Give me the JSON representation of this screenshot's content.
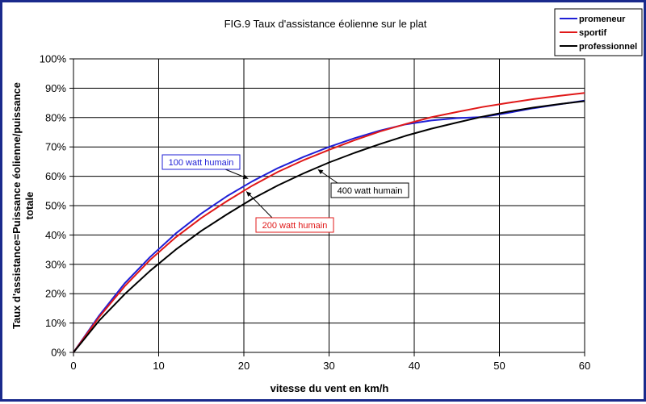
{
  "chart_data": {
    "type": "line",
    "title": "FIG.9 Taux d'assistance éolienne sur le plat",
    "xlabel": "vitesse du vent en km/h",
    "ylabel_lines": [
      "Taux d'assistance=Puissance éolienne/puissance",
      "totale"
    ],
    "xlim": [
      0,
      60
    ],
    "ylim": [
      0,
      100
    ],
    "x_ticks": [
      "0",
      "10",
      "20",
      "30",
      "40",
      "50",
      "60"
    ],
    "y_ticks": [
      "0%",
      "10%",
      "20%",
      "30%",
      "40%",
      "50%",
      "60%",
      "70%",
      "80%",
      "90%",
      "100%"
    ],
    "grid": true,
    "legend_position": "top-right",
    "series": [
      {
        "name": "promeneur",
        "color": "#1f1fd6",
        "x": [
          0,
          3,
          6,
          9,
          12,
          15,
          18,
          21,
          24,
          27,
          30,
          33,
          36,
          39,
          42,
          45,
          48,
          51,
          54,
          57,
          60
        ],
        "y": [
          0,
          12.5,
          23.5,
          32.5,
          40.5,
          47.3,
          53.2,
          58.3,
          62.8,
          66.6,
          70.0,
          73.0,
          75.6,
          77.7,
          79.0,
          79.8,
          80.2,
          81.6,
          83.2,
          84.5,
          85.8
        ]
      },
      {
        "name": "sportif",
        "color": "#e01818",
        "x": [
          0,
          3,
          6,
          9,
          12,
          15,
          18,
          21,
          24,
          27,
          30,
          33,
          36,
          39,
          42,
          45,
          48,
          51,
          54,
          57,
          60
        ],
        "y": [
          0,
          12.0,
          22.5,
          31.5,
          39.2,
          45.8,
          51.5,
          56.8,
          61.5,
          65.5,
          69.0,
          72.3,
          75.3,
          77.8,
          80.1,
          81.9,
          83.6,
          85.0,
          86.3,
          87.4,
          88.4
        ]
      },
      {
        "name": "professionnel",
        "color": "#000000",
        "x": [
          0,
          3,
          6,
          9,
          12,
          15,
          18,
          21,
          24,
          27,
          30,
          33,
          36,
          39,
          42,
          45,
          48,
          51,
          54,
          57,
          60
        ],
        "y": [
          0,
          10.8,
          19.8,
          27.8,
          35.0,
          41.4,
          47.0,
          52.3,
          56.9,
          61.0,
          64.7,
          68.0,
          71.0,
          73.8,
          76.2,
          78.3,
          80.3,
          82.0,
          83.4,
          84.6,
          85.6
        ]
      }
    ],
    "annotations": [
      {
        "text": "100 watt humain",
        "color": "#1f1fd6",
        "point_x": 20.5,
        "point_y": 59.2
      },
      {
        "text": "200 watt humain",
        "color": "#e01818",
        "point_x": 20.3,
        "point_y": 54.8
      },
      {
        "text": "400 watt humain",
        "color": "#000000",
        "point_x": 28.7,
        "point_y": 62.3
      }
    ]
  }
}
